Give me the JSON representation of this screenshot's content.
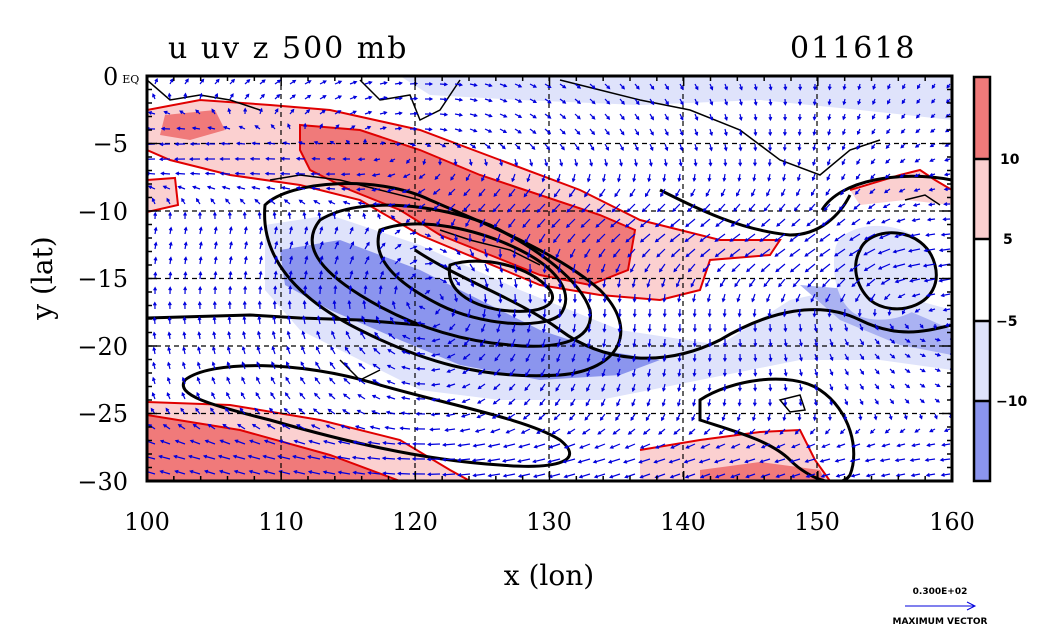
{
  "chart_data": {
    "type": "heatmap",
    "title": "u uv z 500 mb",
    "date_code": "011618",
    "xlabel": "x (lon)",
    "ylabel": "y (lat)",
    "xlim": [
      100,
      160
    ],
    "ylim": [
      -30,
      0
    ],
    "x_ticks": [
      "100",
      "110",
      "120",
      "130",
      "140",
      "150",
      "160"
    ],
    "y_ticks": [
      "0 EQ",
      "−5",
      "−10",
      "−15",
      "−20",
      "−25",
      "−30"
    ],
    "grid": true,
    "colorbar": {
      "labels": [
        "10",
        "5",
        "−5",
        "−10"
      ],
      "colors": [
        "#f07a7a",
        "#fbd0d0",
        "#ffffff",
        "#dfe3fb",
        "#8b95ee"
      ]
    },
    "vector_legend": {
      "value": "0.300E+02",
      "label": "MAXIMUM VECTOR"
    },
    "colors": {
      "strong_east": "#f07a7a",
      "weak_east": "#fbd0d0",
      "weak_west": "#dfe3fb",
      "strong_west": "#8b95ee",
      "contour_red": "#e00000",
      "vectors": "#0000dd",
      "height_contours": "#000000",
      "coast": "#000000"
    }
  }
}
